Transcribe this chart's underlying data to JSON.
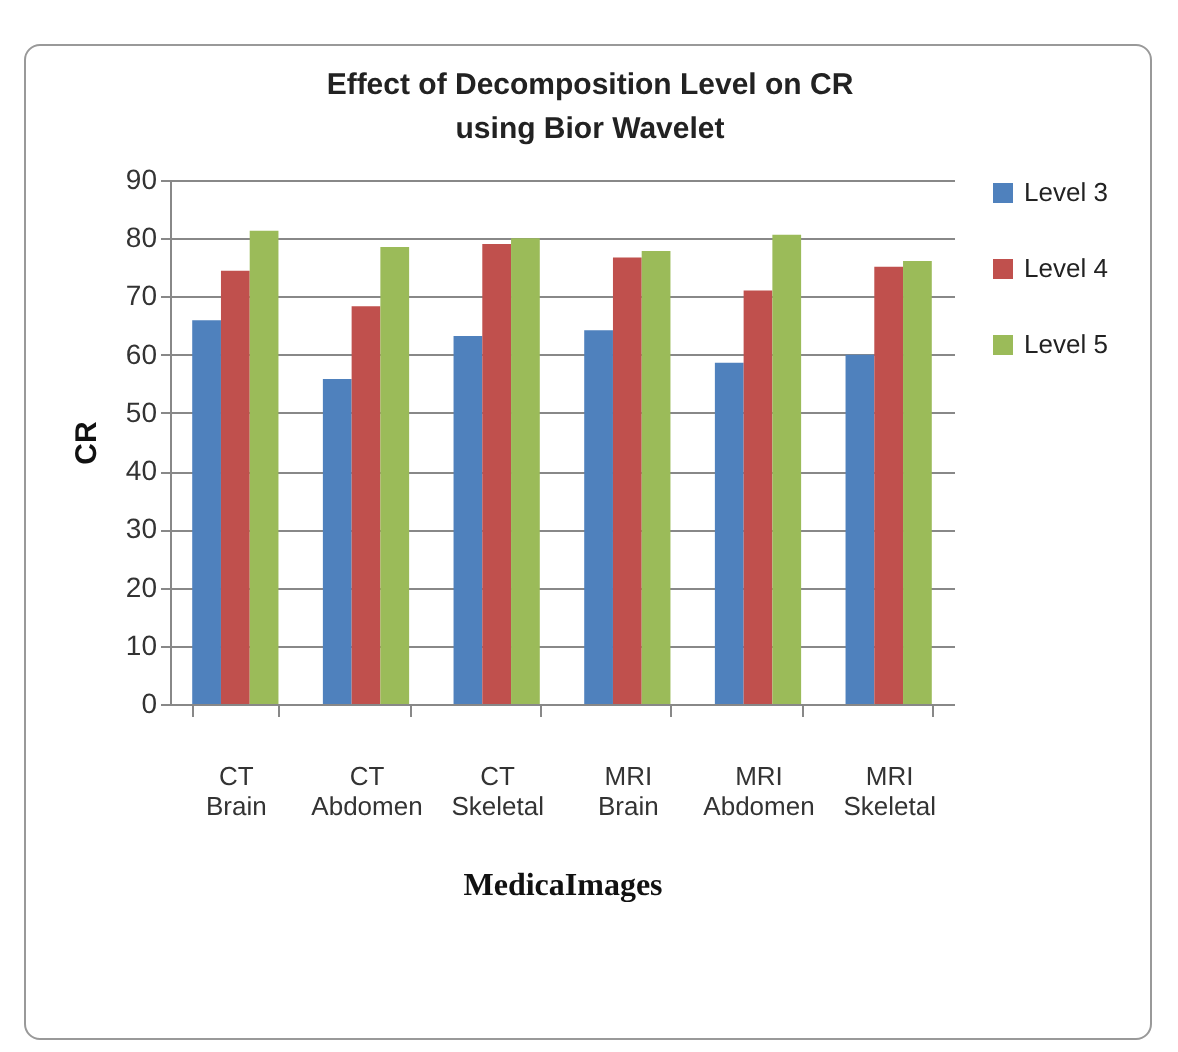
{
  "chart_data": {
    "type": "bar",
    "title": "Effect of Decomposition Level on CR using Bior Wavelet",
    "xlabel": "MedicaImages",
    "ylabel": "CR",
    "categories": [
      "CT Brain",
      "CT Abdomen",
      "CT Skeletal",
      "MRI Brain",
      "MRI Abdomen",
      "MRI Skeletal"
    ],
    "series": [
      {
        "name": "Level 3",
        "color": "#4f81bd",
        "values": [
          65.9,
          55.8,
          63.2,
          64.2,
          58.6,
          60
        ]
      },
      {
        "name": "Level 4",
        "color": "#c0504d",
        "values": [
          74.4,
          68.3,
          79,
          76.7,
          71,
          75.1
        ]
      },
      {
        "name": "Level 5",
        "color": "#9bbb59",
        "values": [
          81.3,
          78.5,
          80,
          77.8,
          80.6,
          76.1
        ]
      }
    ],
    "ylim": [
      0,
      90
    ],
    "yticks": [
      0,
      10,
      20,
      30,
      40,
      50,
      60,
      70,
      80,
      90
    ],
    "grid": "y",
    "legend": "right"
  }
}
